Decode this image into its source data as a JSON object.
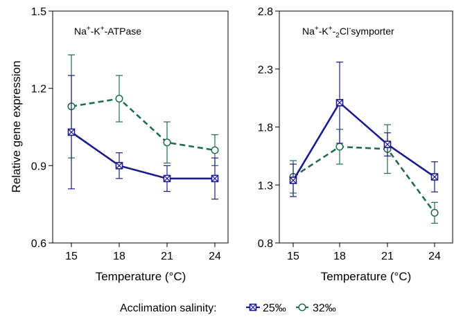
{
  "chart_data": [
    {
      "type": "line",
      "title": "Na⁺-K⁺-ATPase",
      "title_parts": {
        "a": "Na",
        "b": "+",
        "c": "-K",
        "d": "+",
        "e": "-ATPase"
      },
      "xlabel": "Temperature (°C)",
      "ylabel": "Relative gene expression",
      "categories": [
        "15",
        "18",
        "21",
        "24"
      ],
      "ylim": [
        0.6,
        1.5
      ],
      "yticks": [
        "0.6",
        "0.9",
        "1.2",
        "1.5"
      ],
      "grid": false,
      "series": [
        {
          "name": "25‰",
          "values": [
            1.03,
            0.9,
            0.85,
            0.85
          ],
          "err": [
            0.22,
            0.05,
            0.05,
            0.08
          ]
        },
        {
          "name": "32‰",
          "values": [
            1.13,
            1.16,
            0.99,
            0.96
          ],
          "err": [
            0.2,
            0.09,
            0.08,
            0.06
          ]
        }
      ]
    },
    {
      "type": "line",
      "title": "Na⁺-K⁺-₂Cl⁻symporter",
      "title_parts": {
        "a": "Na",
        "b": "+",
        "c": "-K",
        "d": "+",
        "e": "-",
        "f": "2",
        "g": "Cl",
        "h": "-",
        "i": "symporter"
      },
      "xlabel": "Temperature (°C)",
      "categories": [
        "15",
        "18",
        "21",
        "24"
      ],
      "ylim": [
        0.8,
        2.8
      ],
      "yticks": [
        "0.8",
        "1.3",
        "1.8",
        "2.3",
        "2.8"
      ],
      "grid": false,
      "series": [
        {
          "name": "25‰",
          "values": [
            1.34,
            2.01,
            1.65,
            1.37
          ],
          "err": [
            0.14,
            0.35,
            0.1,
            0.13
          ]
        },
        {
          "name": "32‰",
          "values": [
            1.37,
            1.63,
            1.61,
            1.06
          ],
          "err": [
            0.14,
            0.15,
            0.21,
            0.09
          ]
        }
      ]
    }
  ],
  "legend": {
    "title": "Acclimation salinity:",
    "items": [
      "25‰",
      "32‰"
    ]
  },
  "colors": {
    "s25": "#1a1a8c",
    "s32": "#1e6b52"
  }
}
